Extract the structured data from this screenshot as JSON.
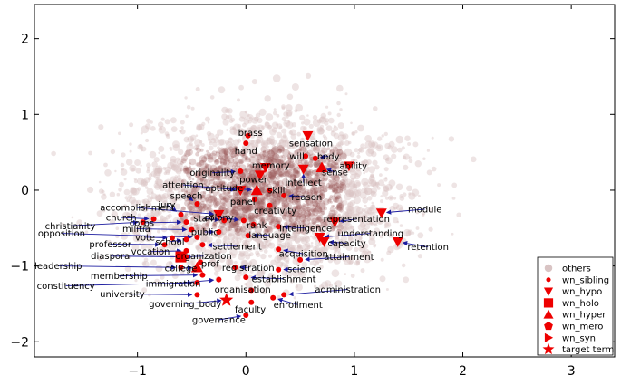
{
  "chart_data": {
    "type": "scatter",
    "title": "",
    "xlabel": "",
    "ylabel": "",
    "xlim": [
      -1.95,
      3.4
    ],
    "ylim": [
      -2.2,
      2.45
    ],
    "xticks": [
      -1,
      0,
      1,
      2,
      3
    ],
    "yticks": [
      -2,
      -1,
      0,
      1,
      2
    ],
    "grid": false,
    "legend_placement": "lower-right",
    "colors": {
      "others": "#d9c4c4",
      "marker": "#ee0000",
      "arrow": "#1c1ca0",
      "cloud_dense": "#9a5a5a"
    },
    "legend": [
      {
        "label": "others",
        "marker": "circle-light"
      },
      {
        "label": "wn_sibling",
        "marker": "dot"
      },
      {
        "label": "wn_hypo",
        "marker": "triangle-down"
      },
      {
        "label": "wn_holo",
        "marker": "square"
      },
      {
        "label": "wn_hyper",
        "marker": "triangle-up"
      },
      {
        "label": "wn_mero",
        "marker": "pentagon"
      },
      {
        "label": "wn_syn",
        "marker": "triangle-right"
      },
      {
        "label": "target term",
        "marker": "star"
      }
    ],
    "points": [
      {
        "label": "brass",
        "type": "wn_sibling",
        "x": 0.02,
        "y": 0.72,
        "lx": 0.04,
        "ly": 0.76
      },
      {
        "label": "hand",
        "type": "wn_sibling",
        "x": 0.0,
        "y": 0.62,
        "lx": 0.0,
        "ly": 0.52
      },
      {
        "label": "sensation",
        "type": "wn_hypo",
        "x": 0.57,
        "y": 0.72,
        "lx": 0.6,
        "ly": 0.62
      },
      {
        "label": "will",
        "type": "wn_sibling",
        "x": 0.55,
        "y": 0.45,
        "lx": 0.47,
        "ly": 0.45
      },
      {
        "label": "body",
        "type": "wn_sibling",
        "x": 0.64,
        "y": 0.42,
        "lx": 0.76,
        "ly": 0.45
      },
      {
        "label": "ability",
        "type": "wn_hypo",
        "x": 0.95,
        "y": 0.32,
        "lx": 0.99,
        "ly": 0.32
      },
      {
        "label": "memory",
        "type": "wn_hypo",
        "x": 0.18,
        "y": 0.3,
        "lx": 0.23,
        "ly": 0.33
      },
      {
        "label": "sense",
        "type": "wn_hyper",
        "x": 0.7,
        "y": 0.3,
        "lx": 0.82,
        "ly": 0.24
      },
      {
        "label": "originality",
        "type": "wn_sibling",
        "x": -0.05,
        "y": 0.25,
        "lx": -0.31,
        "ly": 0.23
      },
      {
        "label": "power",
        "type": "wn_hypo",
        "x": 0.13,
        "y": 0.2,
        "lx": 0.07,
        "ly": 0.14
      },
      {
        "label": "intellect",
        "type": "wn_hypo",
        "x": 0.53,
        "y": 0.28,
        "lx": 0.53,
        "ly": 0.1
      },
      {
        "label": "attention",
        "type": "wn_hypo",
        "x": -0.05,
        "y": 0.0,
        "lx": -0.58,
        "ly": 0.07
      },
      {
        "label": "aptitude",
        "type": "wn_hyper",
        "x": 0.1,
        "y": 0.0,
        "lx": -0.2,
        "ly": 0.03
      },
      {
        "label": "skill",
        "type": "wn_sibling",
        "x": 0.22,
        "y": 0.0,
        "lx": 0.28,
        "ly": 0.0
      },
      {
        "label": "reason",
        "type": "wn_sibling",
        "x": 0.35,
        "y": -0.07,
        "lx": 0.56,
        "ly": -0.09
      },
      {
        "label": "speech",
        "type": "wn_sibling",
        "x": -0.45,
        "y": -0.18,
        "lx": -0.55,
        "ly": -0.07
      },
      {
        "label": "panel",
        "type": "wn_sibling",
        "x": 0.08,
        "y": -0.12,
        "lx": -0.03,
        "ly": -0.15
      },
      {
        "label": "jury",
        "type": "wn_sibling",
        "x": -0.6,
        "y": -0.32,
        "lx": -0.73,
        "ly": -0.19
      },
      {
        "label": "accomplishment",
        "type": "wn_hypo",
        "x": -0.25,
        "y": -0.32,
        "lx": -1.0,
        "ly": -0.23
      },
      {
        "label": "creativity",
        "type": "wn_sibling",
        "x": 0.22,
        "y": -0.2,
        "lx": 0.27,
        "ly": -0.27
      },
      {
        "label": "module",
        "type": "wn_hypo",
        "x": 1.25,
        "y": -0.3,
        "lx": 1.65,
        "ly": -0.25
      },
      {
        "label": "church",
        "type": "wn_sibling",
        "x": -0.85,
        "y": -0.38,
        "lx": -1.15,
        "ly": -0.36
      },
      {
        "label": "staff",
        "type": "wn_sibling",
        "x": -0.2,
        "y": -0.4,
        "lx": -0.39,
        "ly": -0.37
      },
      {
        "label": "colony",
        "type": "wn_sibling",
        "x": -0.02,
        "y": -0.4,
        "lx": -0.25,
        "ly": -0.36
      },
      {
        "label": "representation",
        "type": "wn_hypo",
        "x": 0.82,
        "y": -0.42,
        "lx": 1.02,
        "ly": -0.38
      },
      {
        "label": "corps",
        "type": "wn_sibling",
        "x": -0.55,
        "y": -0.42,
        "lx": -0.96,
        "ly": -0.43
      },
      {
        "label": "christianity",
        "type": "wn_sibling",
        "x": -0.95,
        "y": -0.42,
        "lx": -1.62,
        "ly": -0.47
      },
      {
        "label": "rank",
        "type": "wn_sibling",
        "x": 0.07,
        "y": -0.45,
        "lx": 0.1,
        "ly": -0.46
      },
      {
        "label": "intelligence",
        "type": "wn_sibling",
        "x": 0.3,
        "y": -0.48,
        "lx": 0.55,
        "ly": -0.5
      },
      {
        "label": "militia",
        "type": "wn_sibling",
        "x": -0.5,
        "y": -0.52,
        "lx": -1.01,
        "ly": -0.51
      },
      {
        "label": "public",
        "type": "wn_sibling",
        "x": -0.25,
        "y": -0.55,
        "lx": -0.38,
        "ly": -0.55
      },
      {
        "label": "opposition",
        "type": "wn_sibling",
        "x": -0.45,
        "y": -0.62,
        "lx": -1.7,
        "ly": -0.57
      },
      {
        "label": "understanding",
        "type": "wn_hypo",
        "x": 0.68,
        "y": -0.62,
        "lx": 1.15,
        "ly": -0.57
      },
      {
        "label": "language",
        "type": "wn_sibling",
        "x": 0.02,
        "y": -0.6,
        "lx": 0.22,
        "ly": -0.59
      },
      {
        "label": "vote",
        "type": "wn_sibling",
        "x": -0.68,
        "y": -0.63,
        "lx": -0.93,
        "ly": -0.62
      },
      {
        "label": "school",
        "type": "wn_sibling",
        "x": -0.55,
        "y": -0.65,
        "lx": -0.7,
        "ly": -0.68
      },
      {
        "label": "capacity",
        "type": "wn_hypo",
        "x": 0.72,
        "y": -0.68,
        "lx": 0.93,
        "ly": -0.7
      },
      {
        "label": "retention",
        "type": "wn_hypo",
        "x": 1.4,
        "y": -0.68,
        "lx": 1.68,
        "ly": -0.75
      },
      {
        "label": "professor",
        "type": "wn_sibling",
        "x": -0.75,
        "y": -0.72,
        "lx": -1.25,
        "ly": -0.71
      },
      {
        "label": "settlement",
        "type": "wn_sibling",
        "x": -0.4,
        "y": -0.72,
        "lx": -0.08,
        "ly": -0.74
      },
      {
        "label": "vocation",
        "type": "wn_sibling",
        "x": -0.55,
        "y": -0.8,
        "lx": -0.88,
        "ly": -0.81
      },
      {
        "label": "acquisition",
        "type": "wn_sibling",
        "x": 0.3,
        "y": -0.78,
        "lx": 0.53,
        "ly": -0.84
      },
      {
        "label": "diaspora",
        "type": "wn_sibling",
        "x": -0.55,
        "y": -0.88,
        "lx": -1.25,
        "ly": -0.87
      },
      {
        "label": "organization",
        "type": "wn_holo",
        "x": -0.6,
        "y": -0.88,
        "lx": -0.39,
        "ly": -0.87
      },
      {
        "label": "attainment",
        "type": "wn_sibling",
        "x": 0.5,
        "y": -0.92,
        "lx": 0.95,
        "ly": -0.88
      },
      {
        "label": "leadership",
        "type": "wn_sibling",
        "x": -0.6,
        "y": -1.02,
        "lx": -1.73,
        "ly": -1.0
      },
      {
        "label": "prof",
        "type": "wn_sibling",
        "x": -0.42,
        "y": -0.95,
        "lx": -0.33,
        "ly": -0.97
      },
      {
        "label": "college",
        "type": "wn_hyper",
        "x": -0.45,
        "y": -1.02,
        "lx": -0.6,
        "ly": -1.03
      },
      {
        "label": "registration",
        "type": "wn_sibling",
        "x": -0.1,
        "y": -1.02,
        "lx": 0.02,
        "ly": -1.02
      },
      {
        "label": "science",
        "type": "wn_sibling",
        "x": 0.3,
        "y": -1.05,
        "lx": 0.54,
        "ly": -1.04
      },
      {
        "label": "membership",
        "type": "wn_sibling",
        "x": -0.4,
        "y": -1.12,
        "lx": -1.17,
        "ly": -1.13
      },
      {
        "label": "establishment",
        "type": "wn_sibling",
        "x": 0.0,
        "y": -1.15,
        "lx": 0.35,
        "ly": -1.17
      },
      {
        "label": "immigration",
        "type": "wn_sibling",
        "x": -0.25,
        "y": -1.18,
        "lx": -0.67,
        "ly": -1.23
      },
      {
        "label": "constituency",
        "type": "wn_sibling",
        "x": -0.45,
        "y": -1.22,
        "lx": -1.66,
        "ly": -1.26
      },
      {
        "label": "organisation",
        "type": "wn_sibling",
        "x": 0.05,
        "y": -1.32,
        "lx": -0.03,
        "ly": -1.31
      },
      {
        "label": "administration",
        "type": "wn_sibling",
        "x": 0.35,
        "y": -1.38,
        "lx": 0.94,
        "ly": -1.31
      },
      {
        "label": "university",
        "type": "wn_sibling",
        "x": -0.45,
        "y": -1.38,
        "lx": -1.14,
        "ly": -1.37
      },
      {
        "label": "enrollment",
        "type": "wn_sibling",
        "x": 0.25,
        "y": -1.42,
        "lx": 0.48,
        "ly": -1.51
      },
      {
        "label": "governing_body",
        "type": "target term",
        "x": -0.18,
        "y": -1.45,
        "lx": -0.56,
        "ly": -1.5
      },
      {
        "label": "faculty",
        "type": "wn_sibling",
        "x": 0.05,
        "y": -1.48,
        "lx": 0.04,
        "ly": -1.57
      },
      {
        "label": "governance",
        "type": "wn_sibling",
        "x": 0.0,
        "y": -1.65,
        "lx": -0.25,
        "ly": -1.71
      }
    ]
  }
}
